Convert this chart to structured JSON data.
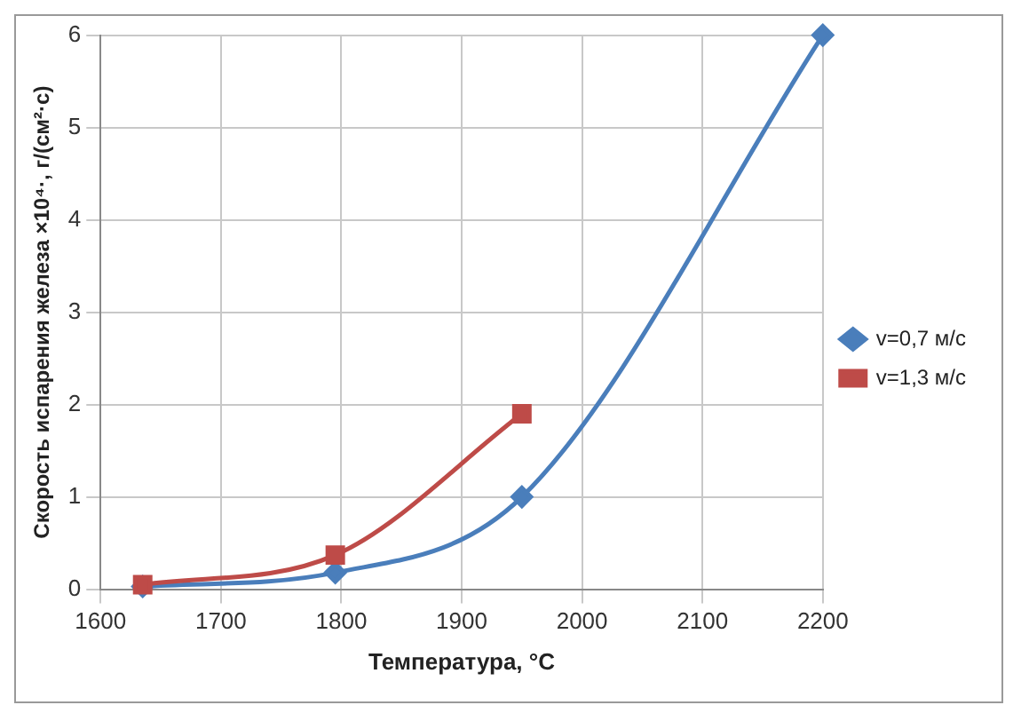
{
  "chart_data": {
    "type": "line",
    "xlabel": "Температура, °C",
    "ylabel": "Скорость испарения железа ×10⁴·, г/(см²·с)",
    "xlim": [
      1600,
      2200
    ],
    "xticks": [
      1600,
      1700,
      1800,
      1900,
      2000,
      2100,
      2200
    ],
    "ylim": [
      0,
      6
    ],
    "yticks": [
      0,
      1,
      2,
      3,
      4,
      5,
      6
    ],
    "grid": true,
    "legend": "right",
    "line_style": "solid",
    "series": [
      {
        "name": "v=0,7 м/с",
        "color": "#4a7ebb",
        "marker": "diamond",
        "x": [
          1635,
          1795,
          1950,
          2200
        ],
        "values": [
          0.03,
          0.18,
          1.0,
          6.0
        ]
      },
      {
        "name": "v=1,3 м/с",
        "color": "#be4b48",
        "marker": "square",
        "x": [
          1635,
          1795,
          1950
        ],
        "values": [
          0.05,
          0.37,
          1.9
        ]
      }
    ]
  }
}
